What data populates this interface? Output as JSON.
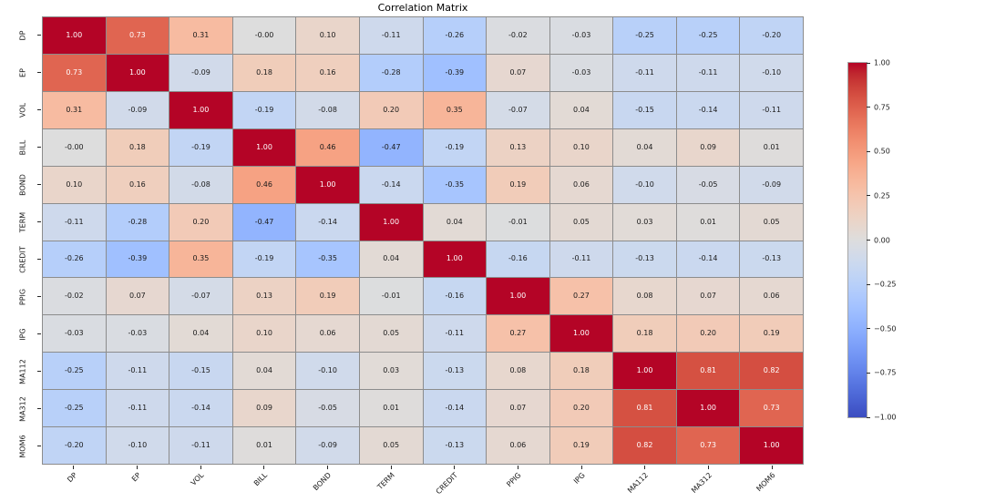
{
  "chart_data": {
    "type": "heatmap",
    "title": "Correlation Matrix",
    "x_labels": [
      "DP",
      "EP",
      "VOL",
      "BILL",
      "BOND",
      "TERM",
      "CREDIT",
      "PPIG",
      "IPG",
      "MA112",
      "MA312",
      "MOM6"
    ],
    "y_labels": [
      "DP",
      "EP",
      "VOL",
      "BILL",
      "BOND",
      "TERM",
      "CREDIT",
      "PPIG",
      "IPG",
      "MA112",
      "MA312",
      "MOM6"
    ],
    "matrix": [
      [
        "1.00",
        "0.73",
        "0.31",
        "-0.00",
        "0.10",
        "-0.11",
        "-0.26",
        "-0.02",
        "-0.03",
        "-0.25",
        "-0.25",
        "-0.20"
      ],
      [
        "0.73",
        "1.00",
        "-0.09",
        "0.18",
        "0.16",
        "-0.28",
        "-0.39",
        "0.07",
        "-0.03",
        "-0.11",
        "-0.11",
        "-0.10"
      ],
      [
        "0.31",
        "-0.09",
        "1.00",
        "-0.19",
        "-0.08",
        "0.20",
        "0.35",
        "-0.07",
        "0.04",
        "-0.15",
        "-0.14",
        "-0.11"
      ],
      [
        "-0.00",
        "0.18",
        "-0.19",
        "1.00",
        "0.46",
        "-0.47",
        "-0.19",
        "0.13",
        "0.10",
        "0.04",
        "0.09",
        "0.01"
      ],
      [
        "0.10",
        "0.16",
        "-0.08",
        "0.46",
        "1.00",
        "-0.14",
        "-0.35",
        "0.19",
        "0.06",
        "-0.10",
        "-0.05",
        "-0.09"
      ],
      [
        "-0.11",
        "-0.28",
        "0.20",
        "-0.47",
        "-0.14",
        "1.00",
        "0.04",
        "-0.01",
        "0.05",
        "0.03",
        "0.01",
        "0.05"
      ],
      [
        "-0.26",
        "-0.39",
        "0.35",
        "-0.19",
        "-0.35",
        "0.04",
        "1.00",
        "-0.16",
        "-0.11",
        "-0.13",
        "-0.14",
        "-0.13"
      ],
      [
        "-0.02",
        "0.07",
        "-0.07",
        "0.13",
        "0.19",
        "-0.01",
        "-0.16",
        "1.00",
        "0.27",
        "0.08",
        "0.07",
        "0.06"
      ],
      [
        "-0.03",
        "-0.03",
        "0.04",
        "0.10",
        "0.06",
        "0.05",
        "-0.11",
        "0.27",
        "1.00",
        "0.18",
        "0.20",
        "0.19"
      ],
      [
        "-0.25",
        "-0.11",
        "-0.15",
        "0.04",
        "-0.10",
        "0.03",
        "-0.13",
        "0.08",
        "0.18",
        "1.00",
        "0.81",
        "0.82"
      ],
      [
        "-0.25",
        "-0.11",
        "-0.14",
        "0.09",
        "-0.05",
        "0.01",
        "-0.14",
        "0.07",
        "0.20",
        "0.81",
        "1.00",
        "0.73"
      ],
      [
        "-0.20",
        "-0.10",
        "-0.11",
        "0.01",
        "-0.09",
        "0.05",
        "-0.13",
        "0.06",
        "0.19",
        "0.82",
        "0.73",
        "1.00"
      ]
    ],
    "value_range": [
      -1,
      1
    ],
    "colormap": "coolwarm",
    "grid": true,
    "grid_line_color": "#8c8c8c",
    "legend_position": "none",
    "colorbar": {
      "position": "right",
      "tick_labels": [
        "1.00",
        "0.75",
        "0.50",
        "0.25",
        "0.00",
        "−0.25",
        "−0.50",
        "−0.75",
        "−1.00"
      ],
      "tick_values": [
        1.0,
        0.75,
        0.5,
        0.25,
        0.0,
        -0.25,
        -0.5,
        -0.75,
        -1.0
      ],
      "top_color": "#b40426",
      "mid_color": "#dddddd",
      "bottom_color": "#3b4cc0"
    },
    "annotation_text_colors": {
      "on_dark": "#ffffff",
      "on_light": "#1a1a1a"
    }
  }
}
